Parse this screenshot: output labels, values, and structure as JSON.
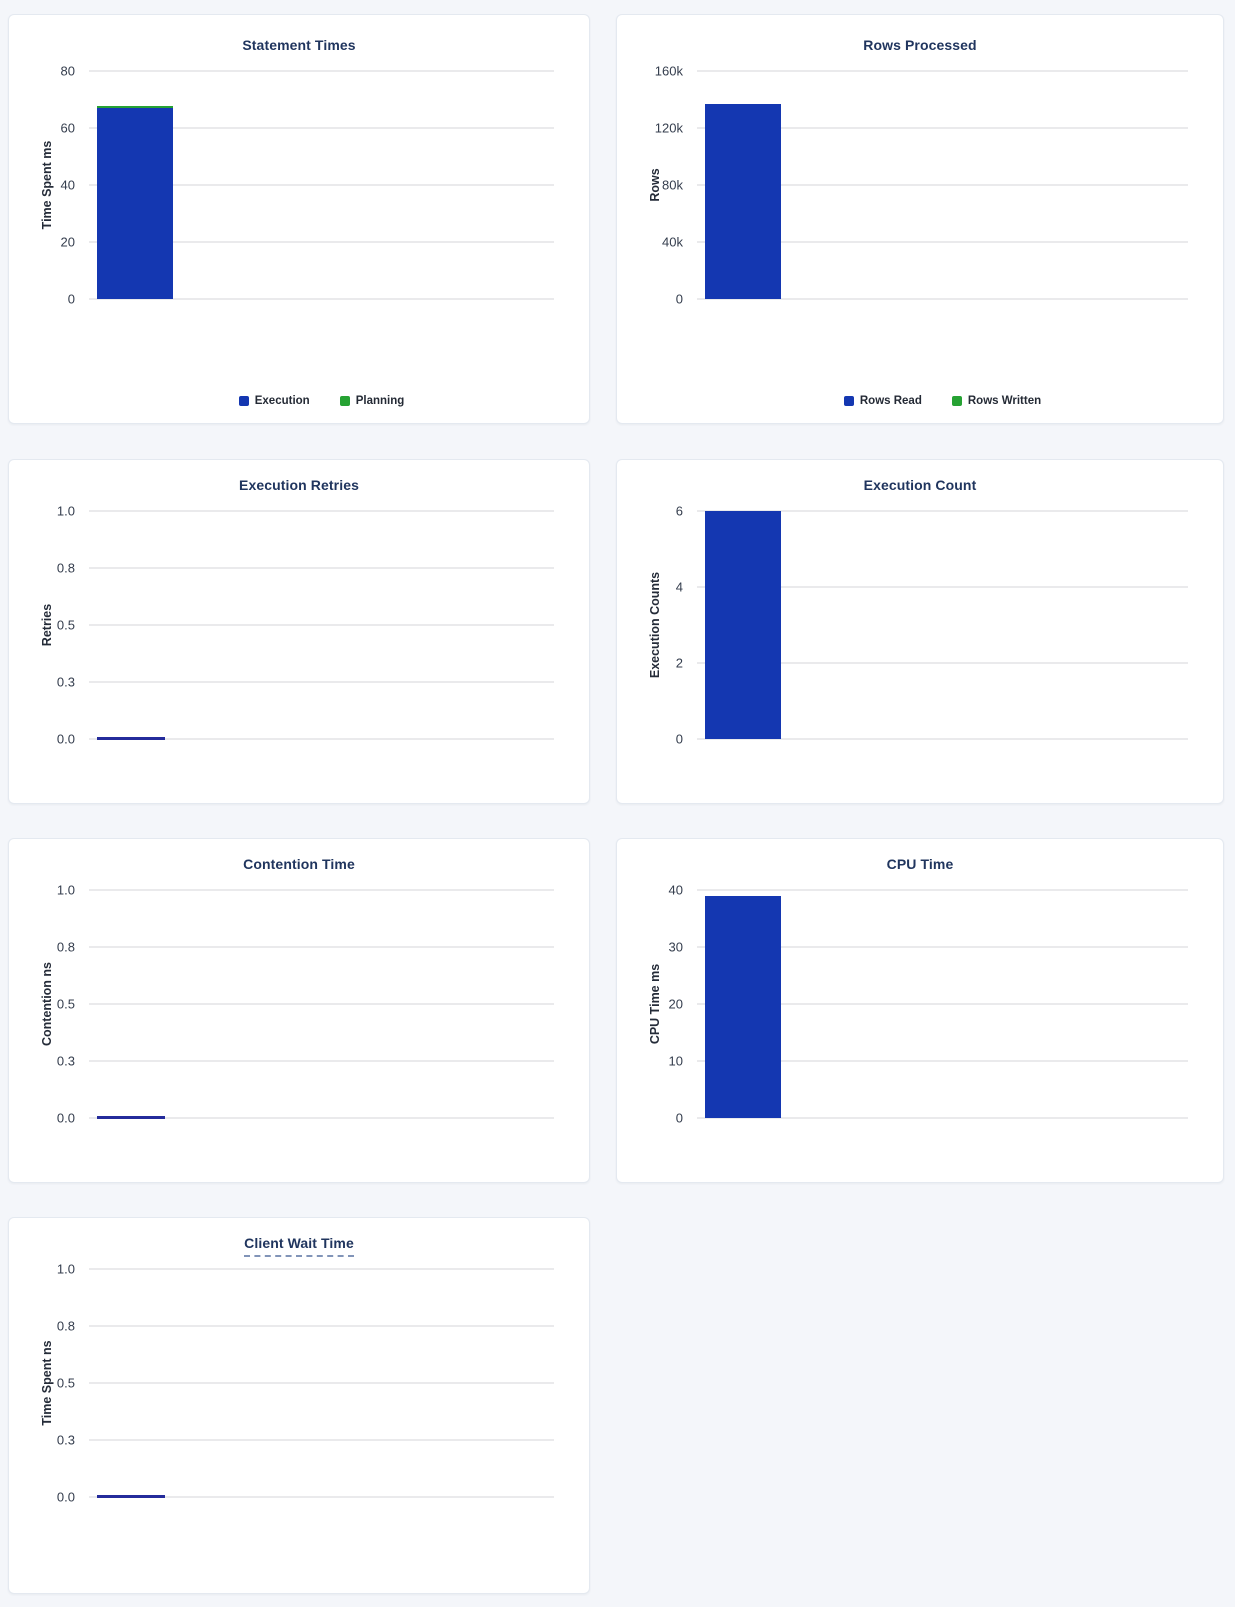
{
  "page": {
    "background": "#f4f6fa"
  },
  "colors": {
    "bar_blue": "#1437b1",
    "bar_green": "#26a233",
    "zero_bar": "#242b9b",
    "title_text": "#20355e",
    "tick_text": "#343d4d",
    "grid_line": "#eaeaec",
    "card_border": "#e4e9f0"
  },
  "chart_data": [
    {
      "type": "bar",
      "title": "Statement Times",
      "ylabel": "Time Spent ms",
      "categories": [
        ""
      ],
      "stacked": true,
      "series": [
        {
          "name": "Execution",
          "color": "#1437b1",
          "values": [
            67
          ]
        },
        {
          "name": "Planning",
          "color": "#26a233",
          "values": [
            0.8
          ]
        }
      ],
      "ylim": [
        0,
        80
      ],
      "yticks": [
        0,
        20,
        40,
        60,
        80
      ],
      "ytick_labels": [
        "0",
        "20",
        "40",
        "60",
        "80"
      ],
      "grid": true,
      "legend": true,
      "legend_position": "bottom"
    },
    {
      "type": "bar",
      "title": "Rows Processed",
      "ylabel": "Rows",
      "categories": [
        ""
      ],
      "stacked": true,
      "series": [
        {
          "name": "Rows Read",
          "color": "#1437b1",
          "values": [
            137000
          ]
        },
        {
          "name": "Rows Written",
          "color": "#26a233",
          "values": [
            0
          ]
        }
      ],
      "ylim": [
        0,
        160000
      ],
      "yticks": [
        0,
        40000,
        80000,
        120000,
        160000
      ],
      "ytick_labels": [
        "0",
        "40k",
        "80k",
        "120k",
        "160k"
      ],
      "grid": true,
      "legend": true,
      "legend_position": "bottom"
    },
    {
      "type": "bar",
      "title": "Execution Retries",
      "ylabel": "Retries",
      "categories": [
        ""
      ],
      "series": [
        {
          "name": "Retries",
          "color": "#1437b1",
          "values": [
            0
          ]
        }
      ],
      "ylim": [
        0,
        1
      ],
      "yticks": [
        0,
        0.25,
        0.5,
        0.75,
        1
      ],
      "ytick_labels": [
        "0.0",
        "0.3",
        "0.5",
        "0.8",
        "1.0"
      ],
      "grid": true,
      "legend": false
    },
    {
      "type": "bar",
      "title": "Execution Count",
      "ylabel": "Execution Counts",
      "categories": [
        ""
      ],
      "series": [
        {
          "name": "Execution Count",
          "color": "#1437b1",
          "values": [
            6
          ]
        }
      ],
      "ylim": [
        0,
        6
      ],
      "yticks": [
        0,
        2,
        4,
        6
      ],
      "ytick_labels": [
        "0",
        "2",
        "4",
        "6"
      ],
      "grid": true,
      "legend": false
    },
    {
      "type": "bar",
      "title": "Contention Time",
      "ylabel": "Contention ns",
      "categories": [
        ""
      ],
      "series": [
        {
          "name": "Contention",
          "color": "#1437b1",
          "values": [
            0
          ]
        }
      ],
      "ylim": [
        0,
        1
      ],
      "yticks": [
        0,
        0.25,
        0.5,
        0.75,
        1
      ],
      "ytick_labels": [
        "0.0",
        "0.3",
        "0.5",
        "0.8",
        "1.0"
      ],
      "grid": true,
      "legend": false
    },
    {
      "type": "bar",
      "title": "CPU Time",
      "ylabel": "CPU Time ms",
      "categories": [
        ""
      ],
      "series": [
        {
          "name": "CPU Time",
          "color": "#1437b1",
          "values": [
            39
          ]
        }
      ],
      "ylim": [
        0,
        40
      ],
      "yticks": [
        0,
        10,
        20,
        30,
        40
      ],
      "ytick_labels": [
        "0",
        "10",
        "20",
        "30",
        "40"
      ],
      "grid": true,
      "legend": false
    },
    {
      "type": "bar",
      "title": "Client Wait Time",
      "ylabel": "Time Spent ns",
      "categories": [
        ""
      ],
      "title_underline": true,
      "series": [
        {
          "name": "Client Wait",
          "color": "#1437b1",
          "values": [
            0
          ]
        }
      ],
      "ylim": [
        0,
        1
      ],
      "yticks": [
        0,
        0.25,
        0.5,
        0.75,
        1
      ],
      "ytick_labels": [
        "0.0",
        "0.3",
        "0.5",
        "0.8",
        "1.0"
      ],
      "grid": true,
      "legend": false
    }
  ]
}
